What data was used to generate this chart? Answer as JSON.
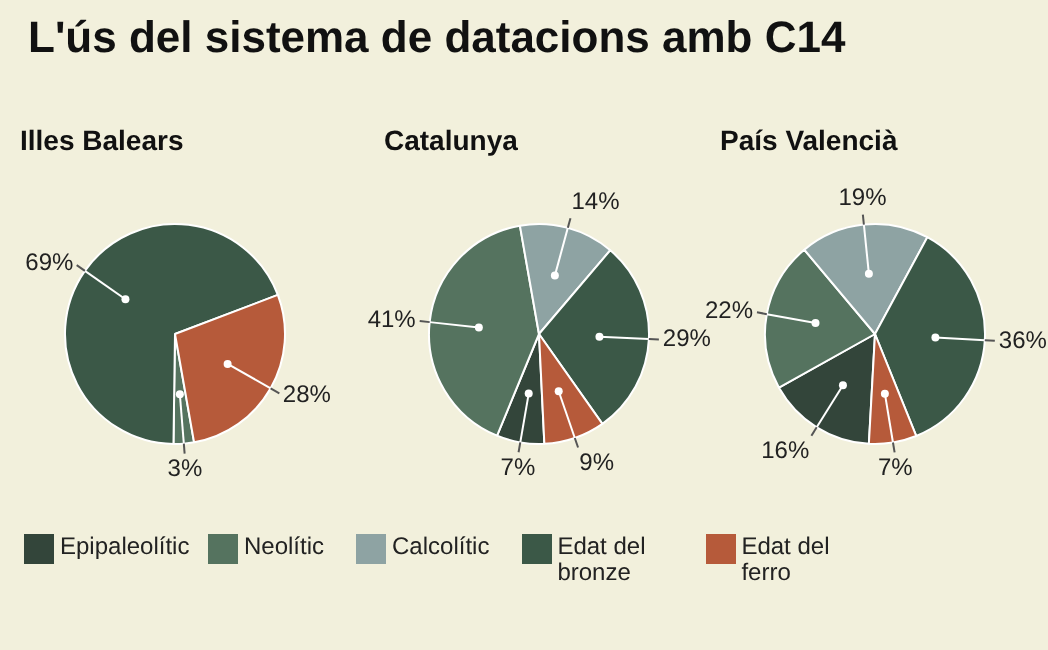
{
  "chart_data": [
    {
      "type": "pie",
      "title": "L'ús del sistema de datacions amb C14",
      "subtitle": "Illes Balears",
      "categories": [
        "Epipaleolític",
        "Neolític",
        "Calcolític",
        "Edat del bronze",
        "Edat del ferro"
      ],
      "values": [
        null,
        3,
        null,
        69,
        28
      ],
      "colors": [
        "#33453a",
        "#55735f",
        "#8ea3a3",
        "#3b5847",
        "#b65a3a"
      ],
      "value_labels": [
        null,
        "3%",
        null,
        "69%",
        "28%"
      ],
      "legend": "bottom"
    },
    {
      "type": "pie",
      "subtitle": "Catalunya",
      "categories": [
        null,
        null,
        null,
        null,
        null
      ],
      "values": [
        7,
        41,
        14,
        29,
        9
      ],
      "colors": [
        "#33453a",
        "#55735f",
        "#8ea3a3",
        "#3b5847",
        "#b65a3a"
      ],
      "value_labels": [
        "7%",
        "41%",
        "14%",
        "29%",
        "9%"
      ]
    },
    {
      "type": "pie",
      "subtitle": "País Valencià",
      "categories": [
        null,
        null,
        null,
        null,
        null
      ],
      "values": [
        16,
        22,
        19,
        36,
        7
      ],
      "colors": [
        "#33453a",
        "#55735f",
        "#8ea3a3",
        "#3b5847",
        "#b65a3a"
      ],
      "value_labels": [
        "16%",
        "22%",
        "19%",
        "36%",
        "7%"
      ]
    }
  ]
}
